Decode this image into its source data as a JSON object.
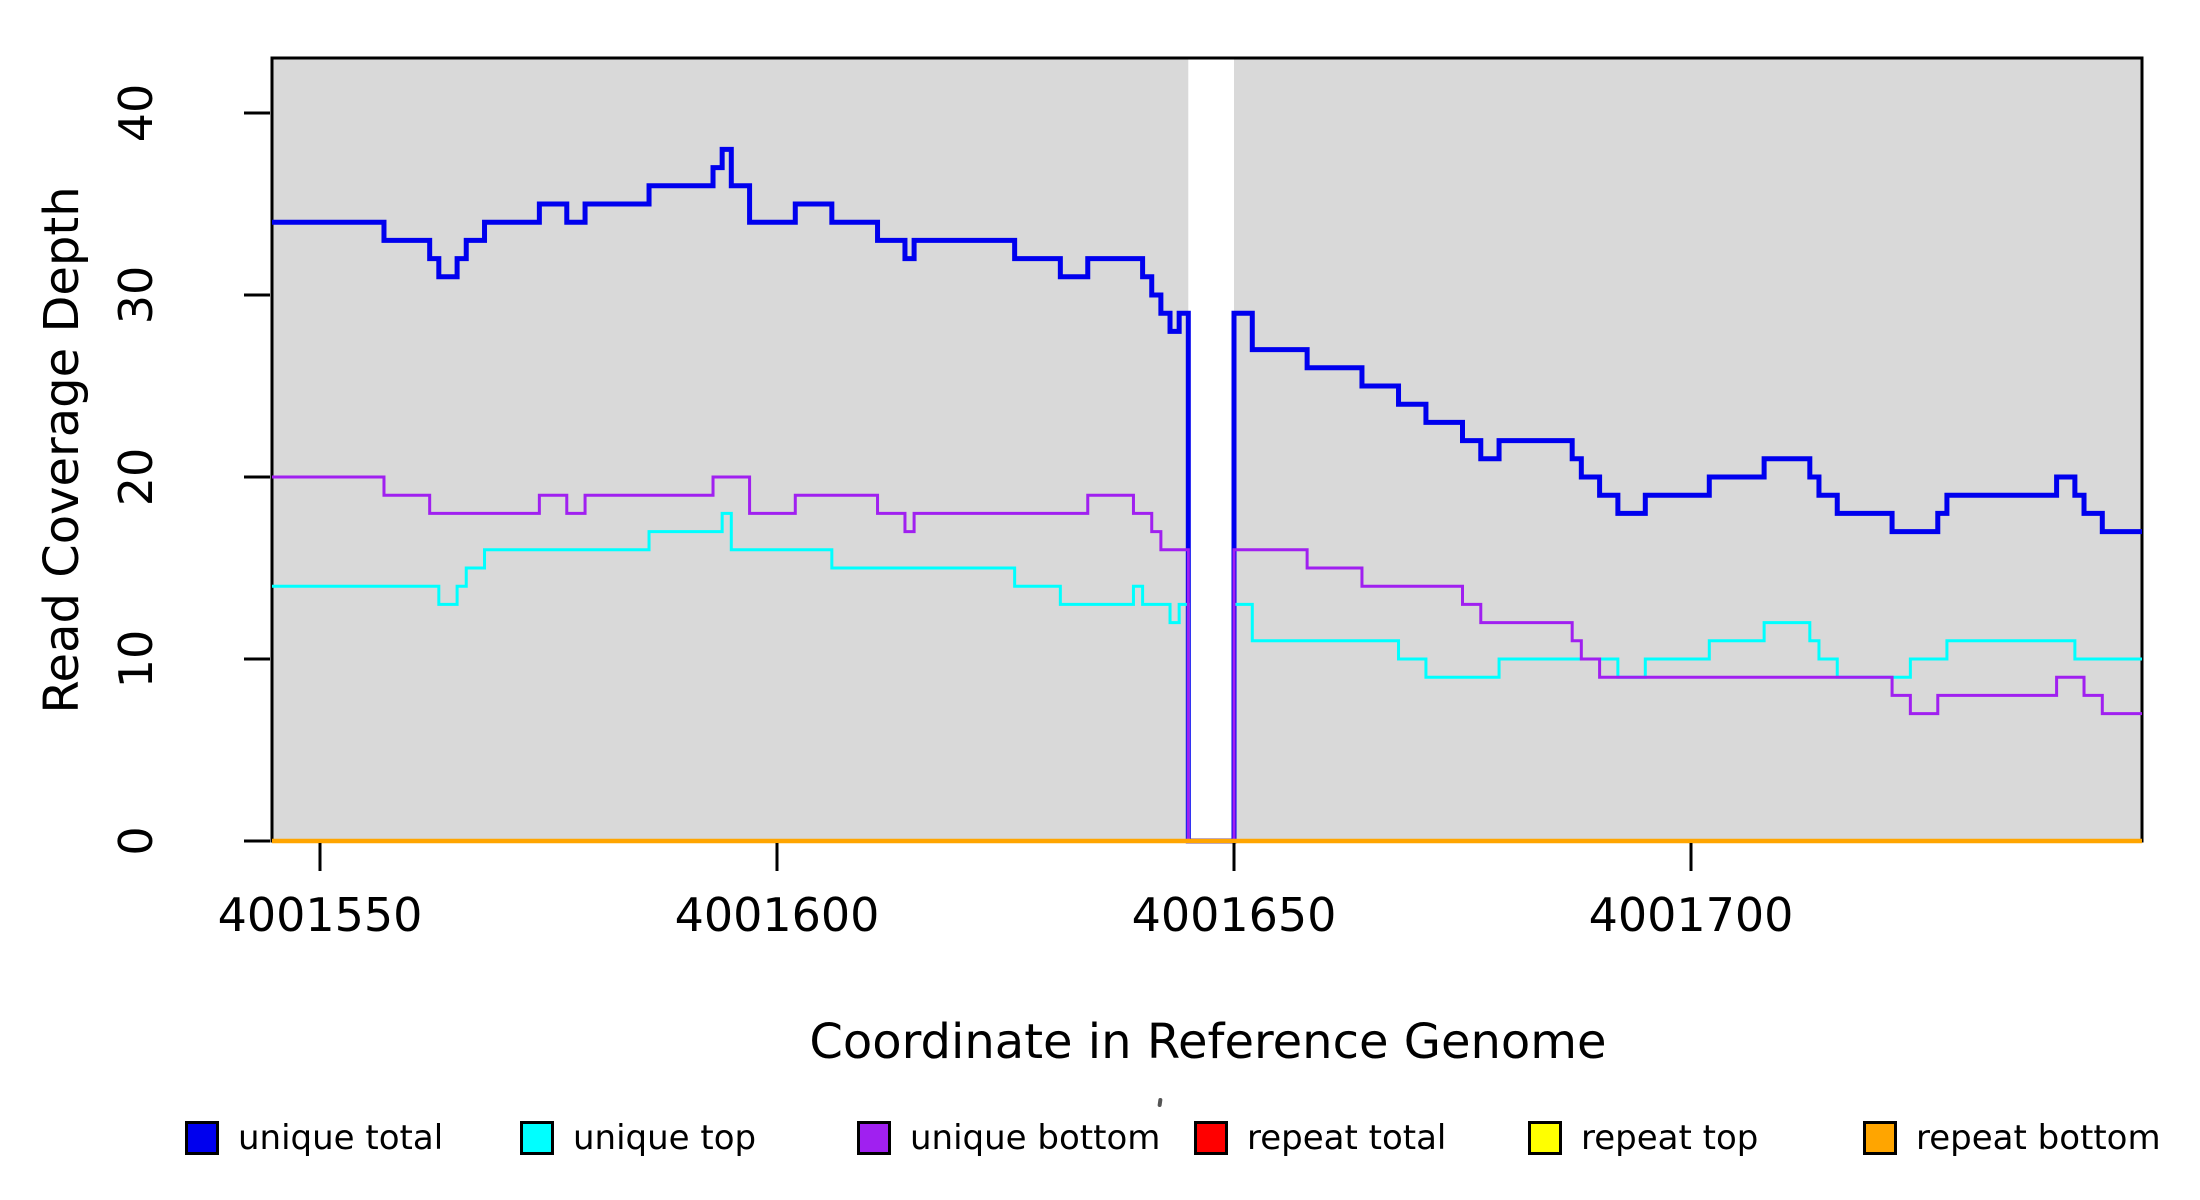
{
  "chart_data": {
    "type": "line",
    "subtype": "step-post-coverage-plot",
    "title": "",
    "xlabel": "Coordinate in Reference Genome",
    "ylabel": "Read Coverage Depth",
    "x_range": [
      4001544.8,
      4001749.3
    ],
    "ylim": [
      0,
      43
    ],
    "grid": "off",
    "legend_position": "bottom",
    "x_ticks": [
      4001550,
      4001600,
      4001650,
      4001700
    ],
    "y_ticks": [
      0,
      10,
      20,
      30,
      40
    ],
    "plot_background_color": "#d9d9d9",
    "repeat_region_band": {
      "start": 4001645,
      "end": 4001650,
      "color": "#ffffff"
    },
    "series": [
      {
        "name": "unique total",
        "color": "#0000ee",
        "line_width": 5,
        "points": [
          [
            4001545,
            34
          ],
          [
            4001557,
            33
          ],
          [
            4001562,
            32
          ],
          [
            4001563,
            31
          ],
          [
            4001565,
            32
          ],
          [
            4001566,
            33
          ],
          [
            4001568,
            34
          ],
          [
            4001574,
            35
          ],
          [
            4001577,
            34
          ],
          [
            4001579,
            35
          ],
          [
            4001586,
            36
          ],
          [
            4001593,
            37
          ],
          [
            4001594,
            38
          ],
          [
            4001595,
            36
          ],
          [
            4001597,
            34
          ],
          [
            4001602,
            35
          ],
          [
            4001606,
            34
          ],
          [
            4001611,
            33
          ],
          [
            4001614,
            32
          ],
          [
            4001615,
            33
          ],
          [
            4001626,
            32
          ],
          [
            4001631,
            31
          ],
          [
            4001634,
            32
          ],
          [
            4001640,
            31
          ],
          [
            4001641,
            30
          ],
          [
            4001642,
            29
          ],
          [
            4001643,
            28
          ],
          [
            4001644,
            29
          ],
          [
            4001645,
            0
          ],
          [
            4001650,
            29
          ],
          [
            4001652,
            27
          ],
          [
            4001658,
            26
          ],
          [
            4001664,
            25
          ],
          [
            4001668,
            24
          ],
          [
            4001671,
            23
          ],
          [
            4001675,
            22
          ],
          [
            4001677,
            21
          ],
          [
            4001679,
            22
          ],
          [
            4001687,
            21
          ],
          [
            4001688,
            20
          ],
          [
            4001690,
            19
          ],
          [
            4001692,
            18
          ],
          [
            4001695,
            19
          ],
          [
            4001702,
            20
          ],
          [
            4001708,
            21
          ],
          [
            4001713,
            20
          ],
          [
            4001714,
            19
          ],
          [
            4001716,
            18
          ],
          [
            4001722,
            17
          ],
          [
            4001727,
            18
          ],
          [
            4001728,
            19
          ],
          [
            4001740,
            20
          ],
          [
            4001742,
            19
          ],
          [
            4001743,
            18
          ],
          [
            4001745,
            17
          ]
        ]
      },
      {
        "name": "unique top",
        "color": "#00ffff",
        "line_width": 3,
        "points": [
          [
            4001545,
            14
          ],
          [
            4001563,
            13
          ],
          [
            4001565,
            14
          ],
          [
            4001566,
            15
          ],
          [
            4001568,
            16
          ],
          [
            4001586,
            17
          ],
          [
            4001594,
            18
          ],
          [
            4001595,
            16
          ],
          [
            4001606,
            15
          ],
          [
            4001626,
            14
          ],
          [
            4001631,
            13
          ],
          [
            4001639,
            14
          ],
          [
            4001640,
            13
          ],
          [
            4001643,
            12
          ],
          [
            4001644,
            13
          ],
          [
            4001645,
            0
          ],
          [
            4001650,
            13
          ],
          [
            4001652,
            11
          ],
          [
            4001668,
            10
          ],
          [
            4001671,
            9
          ],
          [
            4001679,
            10
          ],
          [
            4001692,
            9
          ],
          [
            4001695,
            10
          ],
          [
            4001702,
            11
          ],
          [
            4001708,
            12
          ],
          [
            4001713,
            11
          ],
          [
            4001714,
            10
          ],
          [
            4001716,
            9
          ],
          [
            4001724,
            10
          ],
          [
            4001728,
            11
          ],
          [
            4001742,
            10
          ]
        ]
      },
      {
        "name": "unique bottom",
        "color": "#a020f0",
        "line_width": 3,
        "points": [
          [
            4001545,
            20
          ],
          [
            4001557,
            19
          ],
          [
            4001562,
            18
          ],
          [
            4001574,
            19
          ],
          [
            4001577,
            18
          ],
          [
            4001579,
            19
          ],
          [
            4001593,
            20
          ],
          [
            4001597,
            18
          ],
          [
            4001602,
            19
          ],
          [
            4001611,
            18
          ],
          [
            4001614,
            17
          ],
          [
            4001615,
            18
          ],
          [
            4001634,
            19
          ],
          [
            4001639,
            18
          ],
          [
            4001641,
            17
          ],
          [
            4001642,
            16
          ],
          [
            4001645,
            0
          ],
          [
            4001650,
            16
          ],
          [
            4001658,
            15
          ],
          [
            4001664,
            14
          ],
          [
            4001675,
            13
          ],
          [
            4001677,
            12
          ],
          [
            4001687,
            11
          ],
          [
            4001688,
            10
          ],
          [
            4001690,
            9
          ],
          [
            4001722,
            8
          ],
          [
            4001724,
            7
          ],
          [
            4001727,
            8
          ],
          [
            4001740,
            9
          ],
          [
            4001743,
            8
          ],
          [
            4001745,
            7
          ]
        ]
      },
      {
        "name": "repeat total",
        "color": "#ff0000",
        "line_width": 3,
        "points": [
          [
            4001545,
            0
          ]
        ]
      },
      {
        "name": "repeat top",
        "color": "#ffff00",
        "line_width": 3,
        "points": [
          [
            4001545,
            0
          ]
        ]
      },
      {
        "name": "repeat bottom",
        "color": "#ffa500",
        "line_width": 4.5,
        "points": [
          [
            4001545,
            0
          ]
        ]
      }
    ]
  }
}
